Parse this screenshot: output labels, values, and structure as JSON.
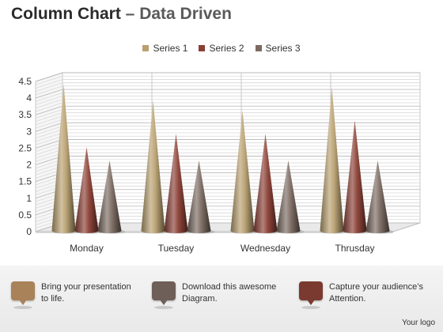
{
  "header": {
    "title": "Column Chart",
    "dash": "–",
    "subtitle": "Data Driven"
  },
  "legend": [
    {
      "label": "Series 1",
      "color": "#b8a070"
    },
    {
      "label": "Series 2",
      "color": "#8a3e34"
    },
    {
      "label": "Series 3",
      "color": "#7a6a60"
    }
  ],
  "chart_data": {
    "type": "bar",
    "categories": [
      "Monday",
      "Tuesday",
      "Wednesday",
      "Thrusday"
    ],
    "series": [
      {
        "name": "Series 1",
        "values": [
          4.3,
          3.8,
          3.5,
          4.2
        ],
        "color": "#b8a070"
      },
      {
        "name": "Series 2",
        "values": [
          2.4,
          2.8,
          2.8,
          3.2
        ],
        "color": "#8a3e34"
      },
      {
        "name": "Series 3",
        "values": [
          2.0,
          2.0,
          2.0,
          2.0
        ],
        "color": "#7a6a60"
      }
    ],
    "y_ticks": [
      "0",
      "0.5",
      "1",
      "1.5",
      "2",
      "2.5",
      "3",
      "3.5",
      "4",
      "4.5"
    ],
    "ylim": [
      0,
      4.5
    ],
    "grid": true,
    "legend_position": "top-center",
    "shape": "cone"
  },
  "footer": {
    "callouts": [
      {
        "line1": "Bring your presentation",
        "line2": "to life.",
        "color": "#a98259"
      },
      {
        "line1": "Download this awesome",
        "line2": "Diagram.",
        "color": "#6e5f58"
      },
      {
        "line1": "Capture your audience’s",
        "line2": "Attention.",
        "color": "#7a3a30"
      }
    ],
    "logo_text": "Your logo"
  }
}
